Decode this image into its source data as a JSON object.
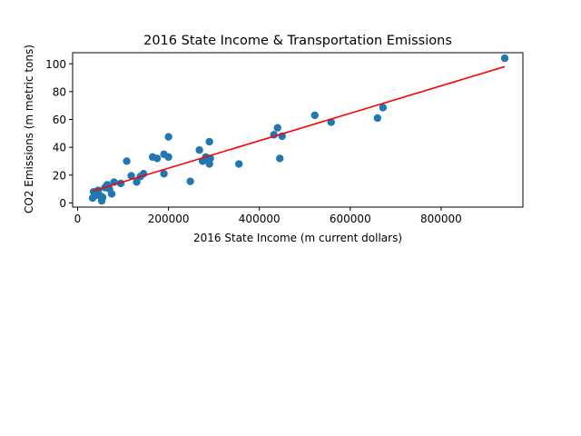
{
  "chart_data": {
    "type": "scatter",
    "title": "2016 State Income & Transportation Emissions",
    "xlabel": "2016 State Income (m current dollars)",
    "ylabel": "CO2 Emissions (m metric tons)",
    "xlim": [
      -11000,
      980000
    ],
    "ylim": [
      -3,
      108
    ],
    "xticks": [
      0,
      200000,
      400000,
      600000,
      800000
    ],
    "xtick_labels": [
      "0",
      "200000",
      "400000",
      "600000",
      "800000"
    ],
    "yticks": [
      0,
      20,
      40,
      60,
      80,
      100
    ],
    "ytick_labels": [
      "0",
      "20",
      "40",
      "60",
      "80",
      "100"
    ],
    "grid": false,
    "series": [
      {
        "type": "scatter",
        "color": "#1f77b4",
        "points": [
          [
            33000,
            3.5
          ],
          [
            35000,
            8
          ],
          [
            40000,
            5.5
          ],
          [
            45000,
            9
          ],
          [
            50000,
            5
          ],
          [
            53000,
            1.5
          ],
          [
            55000,
            4
          ],
          [
            60000,
            11
          ],
          [
            65000,
            13
          ],
          [
            70000,
            10
          ],
          [
            75000,
            6.5
          ],
          [
            80000,
            15
          ],
          [
            95000,
            14
          ],
          [
            108000,
            30
          ],
          [
            118000,
            19.5
          ],
          [
            130000,
            15
          ],
          [
            138000,
            19
          ],
          [
            145000,
            21
          ],
          [
            165000,
            33
          ],
          [
            175000,
            32
          ],
          [
            190000,
            35
          ],
          [
            190000,
            21
          ],
          [
            200000,
            47.5
          ],
          [
            200000,
            33
          ],
          [
            248000,
            15.5
          ],
          [
            268000,
            38
          ],
          [
            275000,
            30
          ],
          [
            282000,
            33
          ],
          [
            285000,
            31
          ],
          [
            290000,
            28
          ],
          [
            290000,
            44
          ],
          [
            292000,
            32
          ],
          [
            355000,
            28
          ],
          [
            432000,
            49
          ],
          [
            440000,
            54
          ],
          [
            445000,
            32
          ],
          [
            450000,
            48
          ],
          [
            522000,
            63
          ],
          [
            558000,
            58
          ],
          [
            660000,
            61
          ],
          [
            672000,
            68.5
          ],
          [
            940000,
            104
          ]
        ]
      },
      {
        "type": "line",
        "color": "#ff0000",
        "x": [
          33000,
          940000
        ],
        "y": [
          8.5,
          98
        ]
      }
    ]
  }
}
